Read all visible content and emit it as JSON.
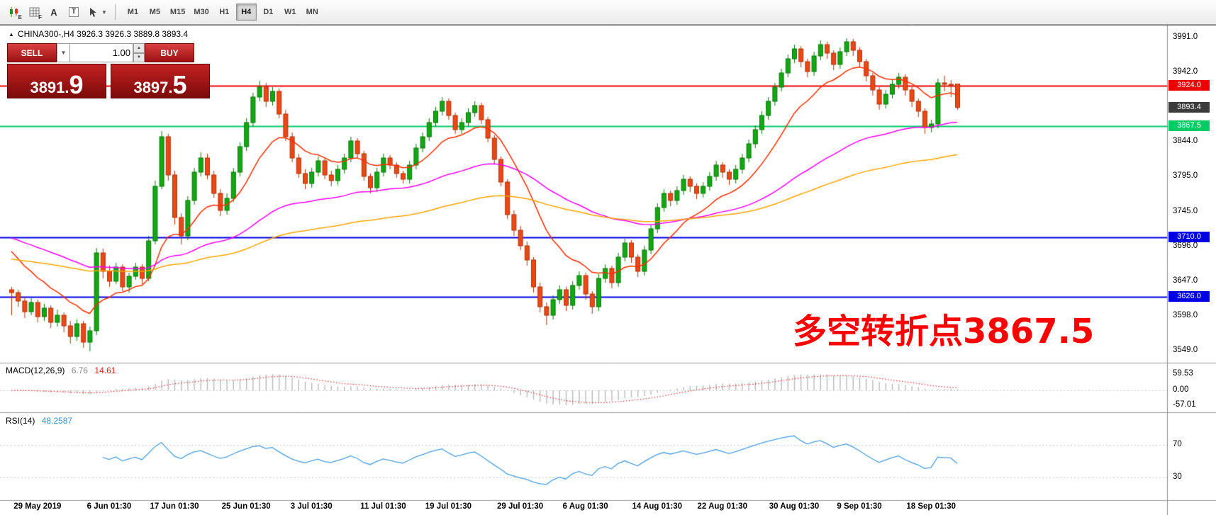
{
  "window": {
    "symbol_marker": "▲",
    "title": "CHINA300-,H4  3926.3 3926.3 3889.8 3893.4"
  },
  "toolbar": {
    "icons": [
      {
        "name": "candlestick-chart-icon",
        "sub": "E"
      },
      {
        "name": "grid-icon",
        "sub": "F"
      },
      {
        "name": "letter-a-icon",
        "glyph": "A"
      },
      {
        "name": "boxed-t-icon",
        "glyph": "T"
      },
      {
        "name": "cursor-icon",
        "sub": ""
      }
    ],
    "timeframes": [
      "M1",
      "M5",
      "M15",
      "M30",
      "H1",
      "H4",
      "D1",
      "W1",
      "MN"
    ],
    "active_timeframe": "H4"
  },
  "trade_panel": {
    "sell_label": "SELL",
    "buy_label": "BUY",
    "volume": "1.00",
    "sell_price_small": "3891.",
    "sell_price_big": "9",
    "buy_price_small": "3897.",
    "buy_price_big": "5"
  },
  "annotation": {
    "text": "多空转折点3867.5",
    "color": "#ff0000"
  },
  "macd_panel": {
    "name": "MACD(12,26,9)",
    "main_value": "6.76",
    "signal_value": "14.61",
    "axis_labels": [
      "59.53",
      "0.00",
      "-57.01"
    ]
  },
  "rsi_panel": {
    "name": "RSI(14)",
    "value": "48.2587",
    "axis_labels": [
      "70",
      "30"
    ],
    "levels": [
      70,
      30
    ]
  },
  "chart_data": {
    "type": "candlestick",
    "symbol": "CHINA300-",
    "timeframe": "H4",
    "last_ohlc": {
      "open": 3926.3,
      "high": 3926.3,
      "low": 3889.8,
      "close": 3893.4
    },
    "up_color": "#12a812",
    "down_color": "#ec4715",
    "price_ticks": [
      {
        "label": "3991.0",
        "value": 3991
      },
      {
        "label": "3942.0",
        "value": 3942
      },
      {
        "label": "3844.0",
        "value": 3844
      },
      {
        "label": "3795.0",
        "value": 3795
      },
      {
        "label": "3745.0",
        "value": 3745
      },
      {
        "label": "3696.0",
        "value": 3696
      },
      {
        "label": "3647.0",
        "value": 3647
      },
      {
        "label": "3598.0",
        "value": 3598
      },
      {
        "label": "3549.0",
        "value": 3549
      }
    ],
    "current_price": {
      "label": "3893.4",
      "value": 3893.4,
      "bg": "#3c3c3c"
    },
    "hlines": [
      {
        "value": 3924.0,
        "label": "3924.0",
        "color": "#ee0000"
      },
      {
        "value": 3867.5,
        "label": "3867.5",
        "color": "#00cc66"
      },
      {
        "value": 3710.0,
        "label": "3710.0",
        "color": "#0000e6"
      },
      {
        "value": 3626.0,
        "label": "3626.0",
        "color": "#0000e6"
      }
    ],
    "moving_averages": [
      {
        "name": "ema-fast",
        "period": 13,
        "seed": 3700,
        "color": "#ff2d00"
      },
      {
        "name": "ema-mid",
        "period": 55,
        "seed": 3712,
        "color": "#ff00ff"
      },
      {
        "name": "ema-slow",
        "period": 110,
        "seed": 3680,
        "color": "#ffa500"
      }
    ],
    "macd": {
      "params": [
        12,
        26,
        9
      ],
      "bar_color": "#b9b9b9",
      "signal_color": "#e03636"
    },
    "rsi": {
      "params": [
        14
      ],
      "color": "#4a9ede"
    },
    "x_labels": [
      {
        "text": "29 May 2019",
        "index": 4
      },
      {
        "text": "6 Jun 01:30",
        "index": 15
      },
      {
        "text": "17 Jun 01:30",
        "index": 25
      },
      {
        "text": "25 Jun 01:30",
        "index": 36
      },
      {
        "text": "3 Jul 01:30",
        "index": 46
      },
      {
        "text": "11 Jul 01:30",
        "index": 57
      },
      {
        "text": "19 Jul 01:30",
        "index": 67
      },
      {
        "text": "29 Jul 01:30",
        "index": 78
      },
      {
        "text": "6 Aug 01:30",
        "index": 88
      },
      {
        "text": "14 Aug 01:30",
        "index": 99
      },
      {
        "text": "22 Aug 01:30",
        "index": 109
      },
      {
        "text": "30 Aug 01:30",
        "index": 120
      },
      {
        "text": "9 Sep 01:30",
        "index": 130
      },
      {
        "text": "18 Sep 01:30",
        "index": 141
      }
    ],
    "ohlc": [
      [
        3636,
        3640,
        3600,
        3632
      ],
      [
        3632,
        3636,
        3612,
        3620
      ],
      [
        3620,
        3626,
        3596,
        3605
      ],
      [
        3605,
        3624,
        3600,
        3618
      ],
      [
        3618,
        3622,
        3590,
        3598
      ],
      [
        3598,
        3616,
        3592,
        3610
      ],
      [
        3610,
        3614,
        3582,
        3590
      ],
      [
        3590,
        3608,
        3584,
        3600
      ],
      [
        3600,
        3604,
        3576,
        3585
      ],
      [
        3585,
        3592,
        3560,
        3570
      ],
      [
        3570,
        3594,
        3564,
        3588
      ],
      [
        3588,
        3592,
        3554,
        3562
      ],
      [
        3562,
        3584,
        3549,
        3578
      ],
      [
        3578,
        3695,
        3572,
        3688
      ],
      [
        3688,
        3694,
        3652,
        3662
      ],
      [
        3662,
        3670,
        3640,
        3648
      ],
      [
        3648,
        3674,
        3644,
        3668
      ],
      [
        3668,
        3672,
        3634,
        3640
      ],
      [
        3640,
        3660,
        3632,
        3655
      ],
      [
        3655,
        3674,
        3650,
        3668
      ],
      [
        3668,
        3672,
        3644,
        3652
      ],
      [
        3652,
        3712,
        3648,
        3705
      ],
      [
        3705,
        3790,
        3700,
        3782
      ],
      [
        3782,
        3860,
        3778,
        3852
      ],
      [
        3852,
        3856,
        3790,
        3798
      ],
      [
        3798,
        3804,
        3728,
        3738
      ],
      [
        3738,
        3744,
        3700,
        3712
      ],
      [
        3712,
        3768,
        3706,
        3762
      ],
      [
        3762,
        3808,
        3756,
        3802
      ],
      [
        3802,
        3830,
        3796,
        3822
      ],
      [
        3822,
        3828,
        3792,
        3798
      ],
      [
        3798,
        3804,
        3766,
        3772
      ],
      [
        3772,
        3778,
        3740,
        3748
      ],
      [
        3748,
        3772,
        3742,
        3765
      ],
      [
        3765,
        3808,
        3760,
        3802
      ],
      [
        3802,
        3844,
        3796,
        3838
      ],
      [
        3838,
        3878,
        3832,
        3872
      ],
      [
        3872,
        3914,
        3866,
        3908
      ],
      [
        3908,
        3931,
        3902,
        3922
      ],
      [
        3922,
        3928,
        3894,
        3902
      ],
      [
        3902,
        3922,
        3896,
        3916
      ],
      [
        3916,
        3920,
        3878,
        3884
      ],
      [
        3884,
        3890,
        3846,
        3852
      ],
      [
        3852,
        3858,
        3816,
        3822
      ],
      [
        3822,
        3828,
        3794,
        3800
      ],
      [
        3800,
        3806,
        3778,
        3786
      ],
      [
        3786,
        3808,
        3780,
        3802
      ],
      [
        3802,
        3824,
        3796,
        3818
      ],
      [
        3818,
        3822,
        3792,
        3798
      ],
      [
        3798,
        3804,
        3782,
        3790
      ],
      [
        3790,
        3812,
        3784,
        3806
      ],
      [
        3806,
        3828,
        3800,
        3822
      ],
      [
        3822,
        3852,
        3816,
        3846
      ],
      [
        3846,
        3850,
        3822,
        3828
      ],
      [
        3828,
        3832,
        3790,
        3796
      ],
      [
        3796,
        3800,
        3772,
        3780
      ],
      [
        3780,
        3808,
        3774,
        3802
      ],
      [
        3802,
        3828,
        3796,
        3822
      ],
      [
        3822,
        3826,
        3806,
        3812
      ],
      [
        3812,
        3816,
        3794,
        3800
      ],
      [
        3800,
        3804,
        3786,
        3792
      ],
      [
        3792,
        3818,
        3786,
        3812
      ],
      [
        3812,
        3842,
        3806,
        3836
      ],
      [
        3836,
        3858,
        3830,
        3852
      ],
      [
        3852,
        3878,
        3846,
        3872
      ],
      [
        3872,
        3894,
        3866,
        3888
      ],
      [
        3888,
        3908,
        3882,
        3902
      ],
      [
        3902,
        3906,
        3876,
        3882
      ],
      [
        3882,
        3886,
        3856,
        3862
      ],
      [
        3862,
        3878,
        3856,
        3872
      ],
      [
        3872,
        3892,
        3866,
        3886
      ],
      [
        3886,
        3902,
        3880,
        3896
      ],
      [
        3896,
        3900,
        3870,
        3876
      ],
      [
        3876,
        3880,
        3844,
        3850
      ],
      [
        3850,
        3854,
        3814,
        3820
      ],
      [
        3820,
        3824,
        3782,
        3788
      ],
      [
        3788,
        3792,
        3736,
        3742
      ],
      [
        3742,
        3748,
        3712,
        3720
      ],
      [
        3720,
        3726,
        3692,
        3698
      ],
      [
        3698,
        3704,
        3670,
        3678
      ],
      [
        3678,
        3682,
        3632,
        3640
      ],
      [
        3640,
        3646,
        3604,
        3612
      ],
      [
        3612,
        3618,
        3586,
        3600
      ],
      [
        3600,
        3628,
        3594,
        3622
      ],
      [
        3622,
        3642,
        3616,
        3636
      ],
      [
        3636,
        3640,
        3606,
        3614
      ],
      [
        3614,
        3648,
        3608,
        3642
      ],
      [
        3642,
        3662,
        3636,
        3656
      ],
      [
        3656,
        3660,
        3622,
        3630
      ],
      [
        3630,
        3634,
        3602,
        3612
      ],
      [
        3612,
        3658,
        3606,
        3652
      ],
      [
        3652,
        3672,
        3646,
        3666
      ],
      [
        3666,
        3670,
        3638,
        3646
      ],
      [
        3646,
        3688,
        3640,
        3682
      ],
      [
        3682,
        3708,
        3676,
        3702
      ],
      [
        3702,
        3706,
        3674,
        3682
      ],
      [
        3682,
        3686,
        3654,
        3662
      ],
      [
        3662,
        3698,
        3656,
        3692
      ],
      [
        3692,
        3728,
        3686,
        3722
      ],
      [
        3722,
        3758,
        3716,
        3752
      ],
      [
        3752,
        3778,
        3746,
        3772
      ],
      [
        3772,
        3776,
        3754,
        3762
      ],
      [
        3762,
        3782,
        3756,
        3776
      ],
      [
        3776,
        3798,
        3770,
        3792
      ],
      [
        3792,
        3796,
        3774,
        3782
      ],
      [
        3782,
        3786,
        3764,
        3772
      ],
      [
        3772,
        3788,
        3766,
        3782
      ],
      [
        3782,
        3802,
        3776,
        3796
      ],
      [
        3796,
        3818,
        3790,
        3812
      ],
      [
        3812,
        3816,
        3794,
        3802
      ],
      [
        3802,
        3806,
        3784,
        3792
      ],
      [
        3792,
        3812,
        3786,
        3806
      ],
      [
        3806,
        3828,
        3800,
        3822
      ],
      [
        3822,
        3848,
        3816,
        3842
      ],
      [
        3842,
        3868,
        3836,
        3862
      ],
      [
        3862,
        3888,
        3856,
        3882
      ],
      [
        3882,
        3908,
        3876,
        3902
      ],
      [
        3902,
        3928,
        3896,
        3922
      ],
      [
        3922,
        3948,
        3916,
        3942
      ],
      [
        3942,
        3968,
        3936,
        3962
      ],
      [
        3962,
        3982,
        3956,
        3976
      ],
      [
        3976,
        3980,
        3950,
        3958
      ],
      [
        3958,
        3962,
        3936,
        3944
      ],
      [
        3944,
        3972,
        3938,
        3966
      ],
      [
        3966,
        3988,
        3960,
        3982
      ],
      [
        3982,
        3986,
        3962,
        3970
      ],
      [
        3970,
        3974,
        3946,
        3954
      ],
      [
        3954,
        3978,
        3948,
        3972
      ],
      [
        3972,
        3991,
        3966,
        3986
      ],
      [
        3986,
        3990,
        3966,
        3974
      ],
      [
        3974,
        3978,
        3950,
        3958
      ],
      [
        3958,
        3962,
        3930,
        3938
      ],
      [
        3938,
        3942,
        3910,
        3918
      ],
      [
        3918,
        3922,
        3890,
        3898
      ],
      [
        3898,
        3918,
        3892,
        3912
      ],
      [
        3912,
        3932,
        3906,
        3926
      ],
      [
        3926,
        3942,
        3920,
        3936
      ],
      [
        3936,
        3940,
        3910,
        3918
      ],
      [
        3918,
        3922,
        3894,
        3902
      ],
      [
        3902,
        3906,
        3880,
        3888
      ],
      [
        3888,
        3892,
        3856,
        3865
      ],
      [
        3865,
        3876,
        3858,
        3870
      ],
      [
        3870,
        3934,
        3864,
        3928
      ],
      [
        3928,
        3938,
        3916,
        3926
      ],
      [
        3926,
        3932,
        3908,
        3924
      ],
      [
        3926.3,
        3926.3,
        3889.8,
        3893.4
      ]
    ]
  }
}
